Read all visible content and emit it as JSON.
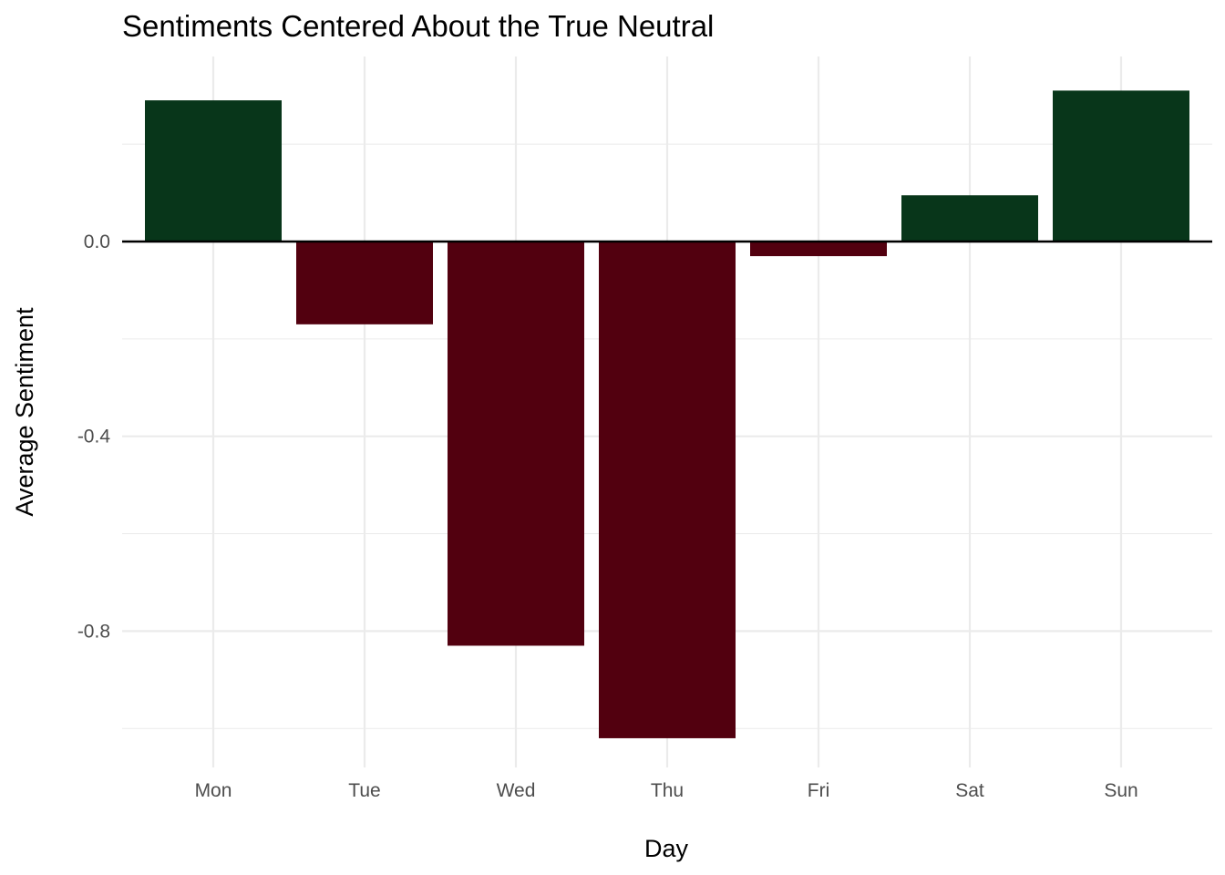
{
  "chart_data": {
    "type": "bar",
    "title": "Sentiments Centered About the True Neutral",
    "xlabel": "Day",
    "ylabel": "Average Sentiment",
    "categories": [
      "Mon",
      "Tue",
      "Wed",
      "Thu",
      "Fri",
      "Sat",
      "Sun"
    ],
    "values": [
      0.29,
      -0.17,
      -0.83,
      -1.02,
      -0.03,
      0.095,
      0.31
    ],
    "ylim": [
      -1.08,
      0.38
    ],
    "yticks": [
      0.0,
      -0.4,
      -0.8
    ],
    "ytick_labels": [
      "0.0",
      "-0.4",
      "-0.8"
    ],
    "grid": true,
    "legend": "none",
    "colors": {
      "positive": "#08361a",
      "negative": "#52000f",
      "grid": "#ebebeb",
      "zero_line": "#000000"
    }
  }
}
